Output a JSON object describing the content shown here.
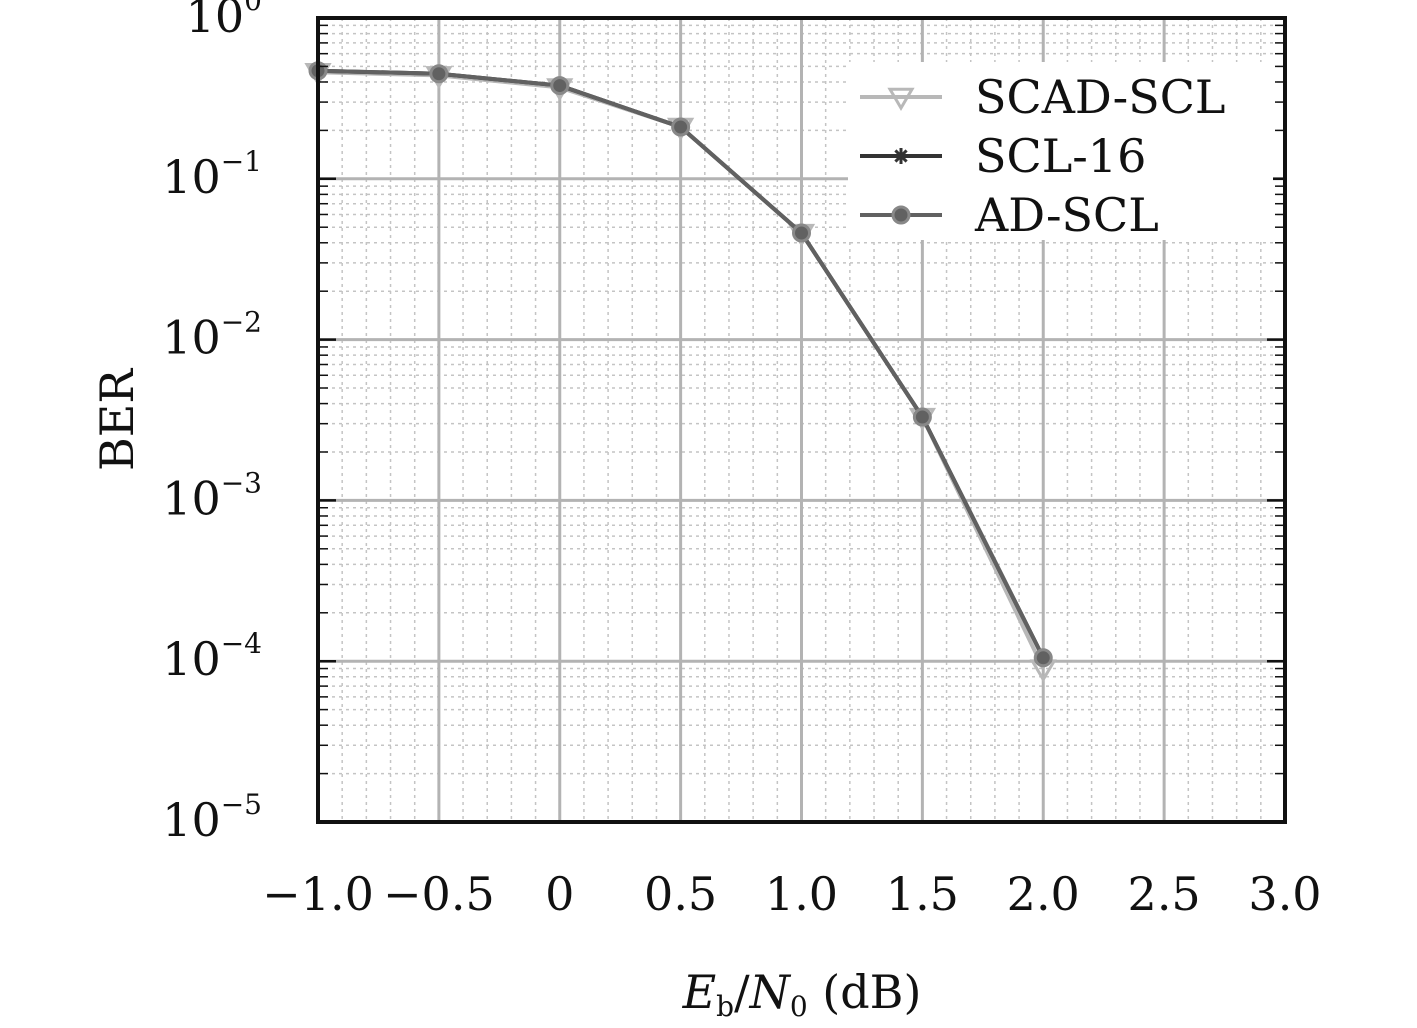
{
  "chart_data": {
    "type": "line",
    "title": "",
    "xlabel": {
      "main": "E",
      "sub1": "b",
      "slash": "/",
      "main2": "N",
      "sub2": "0",
      "unit": " (dB)"
    },
    "ylabel": "BER",
    "x_scale": "linear",
    "y_scale": "log",
    "xlim": [
      -1.0,
      3.0
    ],
    "ylim": [
      1e-05,
      1
    ],
    "x_ticks": [
      -1.0,
      -0.5,
      0,
      0.5,
      1.0,
      1.5,
      2.0,
      2.5,
      3.0
    ],
    "x_tick_labels": [
      "−1.0",
      "−0.5",
      "0",
      "0.5",
      "1.0",
      "1.5",
      "2.0",
      "2.5",
      "3.0"
    ],
    "y_ticks": [
      {
        "value": 1,
        "base": "10",
        "exp": "0"
      },
      {
        "value": 0.1,
        "base": "10",
        "exp": "−1"
      },
      {
        "value": 0.01,
        "base": "10",
        "exp": "−2"
      },
      {
        "value": 0.001,
        "base": "10",
        "exp": "−3"
      },
      {
        "value": 0.0001,
        "base": "10",
        "exp": "−4"
      },
      {
        "value": 1e-05,
        "base": "10",
        "exp": "−5"
      }
    ],
    "grid": true,
    "legend_position": "top-right",
    "series": [
      {
        "name": "SCAD-SCL",
        "marker": "triangle-down",
        "color": "#b8b8b8",
        "x": [
          -1.0,
          -0.5,
          0,
          0.5,
          1.0,
          1.5,
          2.0
        ],
        "y": [
          0.46,
          0.44,
          0.37,
          0.21,
          0.046,
          0.0033,
          9e-05
        ]
      },
      {
        "name": "SCL-16",
        "marker": "star",
        "color": "#333333",
        "x": [
          -1.0,
          -0.5,
          0,
          0.5,
          1.0,
          1.5,
          2.0
        ],
        "y": [
          0.47,
          0.45,
          0.38,
          0.21,
          0.046,
          0.0033,
          0.000105
        ]
      },
      {
        "name": "AD-SCL",
        "marker": "circle",
        "color": "#616161",
        "x": [
          -1.0,
          -0.5,
          0,
          0.5,
          1.0,
          1.5,
          2.0
        ],
        "y": [
          0.47,
          0.45,
          0.38,
          0.21,
          0.046,
          0.0033,
          0.000105
        ]
      }
    ]
  }
}
